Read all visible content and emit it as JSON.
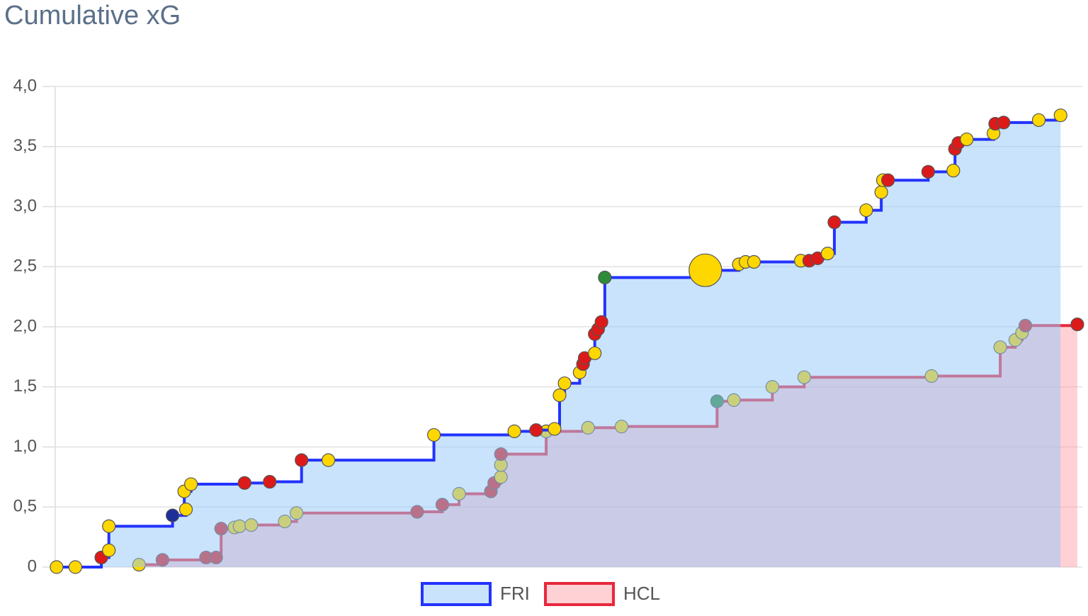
{
  "chart_data": {
    "type": "step",
    "title": "Cumulative xG",
    "xlim": [
      0,
      61.3
    ],
    "ylim": [
      0,
      4.0
    ],
    "yticks": [
      0,
      {
        "value": 0.5,
        "label": "0,5"
      },
      {
        "value": 1.0,
        "label": "1,0"
      },
      {
        "value": 1.5,
        "label": "1,5"
      },
      {
        "value": 2.0,
        "label": "2,0"
      },
      {
        "value": 2.5,
        "label": "2,5"
      },
      {
        "value": 3.0,
        "label": "3,0"
      },
      {
        "value": 3.5,
        "label": "3,5"
      },
      {
        "value": 4.0,
        "label": "4,0"
      }
    ],
    "grid": true,
    "legend": "bottom",
    "series": [
      {
        "name": "HCL",
        "color": "#e8283c",
        "fill": "rgba(255,150,160,0.45)",
        "x": [
          5.0,
          6.4,
          9.0,
          9.6,
          9.9,
          10.7,
          11.0,
          11.7,
          13.7,
          14.4,
          21.6,
          23.1,
          24.1,
          26.0,
          26.2,
          26.6,
          26.6,
          26.6,
          29.3,
          31.8,
          33.8,
          39.5,
          40.5,
          42.8,
          44.7,
          52.3,
          56.4,
          57.3,
          57.7,
          57.9,
          61.0
        ],
        "values": [
          0.02,
          0.06,
          0.08,
          0.08,
          0.32,
          0.33,
          0.34,
          0.35,
          0.38,
          0.45,
          0.46,
          0.52,
          0.61,
          0.63,
          0.7,
          0.75,
          0.85,
          0.94,
          1.13,
          1.16,
          1.17,
          1.38,
          1.39,
          1.5,
          1.58,
          1.59,
          1.83,
          1.89,
          1.95,
          2.01,
          2.02
        ],
        "point_colors": [
          "#ffd700",
          "#dd1a1a",
          "#dd1a1a",
          "#dd1a1a",
          "#dd1a1a",
          "#ffd700",
          "#ffd700",
          "#ffd700",
          "#ffd700",
          "#ffd700",
          "#dd1a1a",
          "#dd1a1a",
          "#ffd700",
          "#dd1a1a",
          "#dd1a1a",
          "#ffd700",
          "#ffd700",
          "#dd1a1a",
          "#ffd700",
          "#ffd700",
          "#ffd700",
          "#2e8b3a",
          "#ffd700",
          "#ffd700",
          "#ffd700",
          "#ffd700",
          "#ffd700",
          "#ffd700",
          "#ffd700",
          "#dd1a1a",
          "#dd1a1a"
        ],
        "sizes": [
          9,
          9,
          9,
          9,
          9,
          9,
          9,
          9,
          9,
          9,
          9,
          9,
          9,
          9,
          9,
          9,
          9,
          9,
          9,
          9,
          9,
          9,
          9,
          9,
          9,
          9,
          9,
          9,
          9,
          9,
          9
        ]
      },
      {
        "name": "FRI",
        "color": "#2233ff",
        "fill": "rgba(150,200,250,0.5)",
        "x": [
          0.08,
          1.2,
          2.75,
          3.2,
          3.2,
          7.0,
          7.8,
          7.7,
          8.1,
          11.3,
          12.8,
          14.7,
          16.3,
          22.6,
          27.4,
          28.7,
          29.8,
          30.1,
          30.4,
          31.3,
          31.5,
          31.6,
          32.2,
          32.2,
          32.4,
          32.6,
          32.8,
          38.8,
          40.8,
          41.2,
          41.7,
          44.5,
          45.0,
          45.5,
          46.1,
          46.5,
          48.4,
          49.3,
          49.4,
          49.7,
          52.1,
          53.6,
          53.7,
          53.9,
          54.4,
          56.0,
          56.1,
          56.6,
          58.7,
          60.0
        ],
        "values": [
          0.0,
          0.0,
          0.08,
          0.14,
          0.34,
          0.43,
          0.48,
          0.63,
          0.69,
          0.7,
          0.71,
          0.89,
          0.89,
          1.1,
          1.13,
          1.14,
          1.15,
          1.43,
          1.53,
          1.62,
          1.69,
          1.74,
          1.78,
          1.94,
          1.98,
          2.04,
          2.41,
          2.47,
          2.52,
          2.54,
          2.54,
          2.55,
          2.55,
          2.57,
          2.61,
          2.87,
          2.97,
          3.12,
          3.22,
          3.22,
          3.29,
          3.3,
          3.48,
          3.53,
          3.56,
          3.61,
          3.69,
          3.7,
          3.72,
          3.76
        ],
        "point_colors": [
          "#ffd700",
          "#ffd700",
          "#dd1a1a",
          "#ffd700",
          "#ffd700",
          "#1f2f99",
          "#ffd700",
          "#ffd700",
          "#ffd700",
          "#dd1a1a",
          "#dd1a1a",
          "#dd1a1a",
          "#ffd700",
          "#ffd700",
          "#ffd700",
          "#dd1a1a",
          "#ffd700",
          "#ffd700",
          "#ffd700",
          "#ffd700",
          "#dd1a1a",
          "#dd1a1a",
          "#ffd700",
          "#dd1a1a",
          "#dd1a1a",
          "#dd1a1a",
          "#2e8b3a",
          "#ffd700",
          "#ffd700",
          "#ffd700",
          "#ffd700",
          "#ffd700",
          "#dd1a1a",
          "#dd1a1a",
          "#ffd700",
          "#dd1a1a",
          "#ffd700",
          "#ffd700",
          "#ffd700",
          "#dd1a1a",
          "#dd1a1a",
          "#ffd700",
          "#dd1a1a",
          "#dd1a1a",
          "#ffd700",
          "#ffd700",
          "#dd1a1a",
          "#dd1a1a",
          "#ffd700",
          "#ffd700"
        ],
        "sizes": [
          9,
          9,
          9,
          9,
          9,
          9,
          9,
          9,
          9,
          9,
          9,
          9,
          9,
          9,
          9,
          9,
          9,
          9,
          9,
          9,
          9,
          9,
          9,
          9,
          9,
          9,
          9,
          23,
          9,
          9,
          9,
          9,
          9,
          9,
          9,
          9,
          9,
          9,
          9,
          9,
          9,
          9,
          9,
          9,
          9,
          9,
          9,
          9,
          9,
          9
        ]
      }
    ]
  }
}
